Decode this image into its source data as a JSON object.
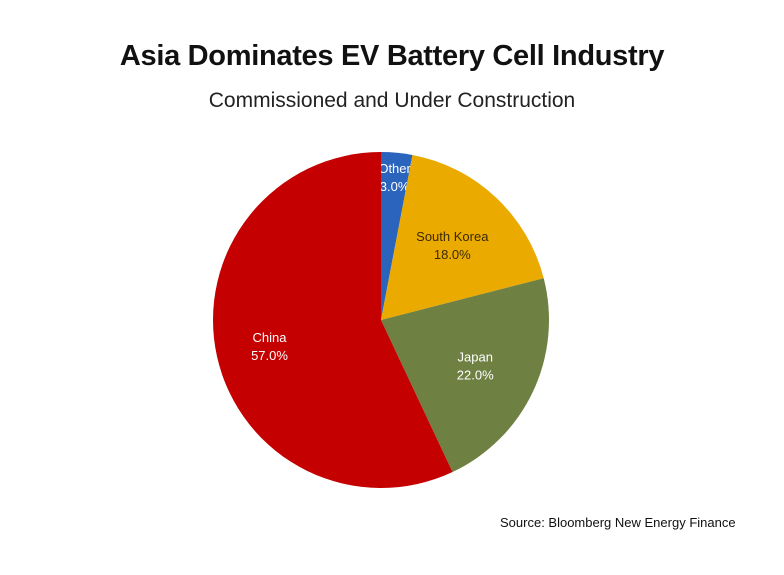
{
  "chart_data": {
    "type": "pie",
    "title": "Asia Dominates EV Battery Cell Industry",
    "subtitle": "Commissioned and Under Construction",
    "source": "Source: Bloomberg New Energy Finance",
    "start_angle": "12 o'clock, clockwise",
    "slices": [
      {
        "label": "Other",
        "value": 3.0,
        "display": "3.0%",
        "color": "#2b64bd",
        "text_color": "#ffffff"
      },
      {
        "label": "South Korea",
        "value": 18.0,
        "display": "18.0%",
        "color": "#eaaa00",
        "text_color": "#3a2a00"
      },
      {
        "label": "Japan",
        "value": 22.0,
        "display": "22.0%",
        "color": "#6f8043",
        "text_color": "#ffffff"
      },
      {
        "label": "China",
        "value": 57.0,
        "display": "57.0%",
        "color": "#c40000",
        "text_color": "#ffffff"
      }
    ],
    "legend": "none (data labels on slices)"
  }
}
